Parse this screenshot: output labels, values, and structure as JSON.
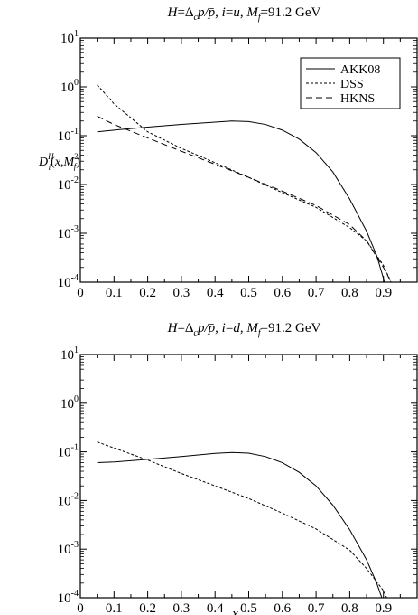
{
  "chart_data": [
    {
      "type": "line",
      "title": "H=Δcp/p̄, i=u, Mf=91.2 GeV",
      "ylabel": "D_i^H(x, M_f^2)",
      "xlabel": "",
      "xlim": [
        0,
        1
      ],
      "ylim": [
        0.0001,
        10
      ],
      "yscale": "log",
      "x_ticks": [
        "0",
        "0.1",
        "0.2",
        "0.3",
        "0.4",
        "0.5",
        "0.6",
        "0.7",
        "0.8",
        "0.9"
      ],
      "y_ticks": [
        "10^-4",
        "10^-3",
        "10^-2",
        "10^-1",
        "10^0",
        "10^1"
      ],
      "legend": "top-right",
      "series": [
        {
          "name": "AKK08",
          "style": "solid",
          "x": [
            0.05,
            0.1,
            0.2,
            0.3,
            0.4,
            0.45,
            0.5,
            0.55,
            0.6,
            0.65,
            0.7,
            0.75,
            0.8,
            0.85,
            0.88,
            0.9,
            0.91
          ],
          "y": [
            0.12,
            0.13,
            0.15,
            0.17,
            0.19,
            0.2,
            0.195,
            0.17,
            0.13,
            0.085,
            0.045,
            0.018,
            0.005,
            0.0011,
            0.00035,
            0.00012,
            6e-05
          ]
        },
        {
          "name": "DSS",
          "style": "dotted",
          "x": [
            0.05,
            0.1,
            0.2,
            0.3,
            0.4,
            0.5,
            0.6,
            0.7,
            0.8,
            0.85,
            0.9,
            0.92,
            0.93
          ],
          "y": [
            1.1,
            0.45,
            0.12,
            0.055,
            0.028,
            0.014,
            0.0068,
            0.0034,
            0.0013,
            0.0007,
            0.00022,
            0.00011,
            7e-05
          ]
        },
        {
          "name": "HKNS",
          "style": "dashed",
          "x": [
            0.05,
            0.1,
            0.2,
            0.3,
            0.4,
            0.5,
            0.6,
            0.7,
            0.8,
            0.85,
            0.9,
            0.92,
            0.94
          ],
          "y": [
            0.25,
            0.17,
            0.09,
            0.048,
            0.026,
            0.014,
            0.0073,
            0.0037,
            0.0015,
            0.0007,
            0.0002,
            0.00011,
            6e-05
          ]
        }
      ]
    },
    {
      "type": "line",
      "title": "H=Δcp/p̄, i=d, Mf=91.2 GeV",
      "ylabel": "",
      "xlabel": "x",
      "xlim": [
        0,
        1
      ],
      "ylim": [
        0.0001,
        10
      ],
      "yscale": "log",
      "x_ticks": [
        "0",
        "0.1",
        "0.2",
        "0.3",
        "0.4",
        "0.5",
        "0.6",
        "0.7",
        "0.8",
        "0.9"
      ],
      "y_ticks": [
        "10^-4",
        "10^-3",
        "10^-2",
        "10^-1",
        "10^0",
        "10^1"
      ],
      "series": [
        {
          "name": "AKK08",
          "style": "solid",
          "x": [
            0.05,
            0.1,
            0.2,
            0.3,
            0.4,
            0.45,
            0.5,
            0.55,
            0.6,
            0.65,
            0.7,
            0.75,
            0.8,
            0.85,
            0.88,
            0.9,
            0.91
          ],
          "y": [
            0.06,
            0.062,
            0.07,
            0.08,
            0.093,
            0.097,
            0.094,
            0.08,
            0.06,
            0.038,
            0.02,
            0.008,
            0.0025,
            0.0006,
            0.0002,
            8e-05,
            4e-05
          ]
        },
        {
          "name": "DSS",
          "style": "dotted",
          "x": [
            0.05,
            0.1,
            0.2,
            0.3,
            0.4,
            0.5,
            0.6,
            0.7,
            0.8,
            0.85,
            0.9,
            0.92
          ],
          "y": [
            0.16,
            0.12,
            0.068,
            0.036,
            0.02,
            0.011,
            0.0055,
            0.0026,
            0.00095,
            0.0004,
            0.00014,
            7e-05
          ]
        }
      ]
    }
  ],
  "legend_labels": [
    "AKK08",
    "DSS",
    "HKNS"
  ]
}
